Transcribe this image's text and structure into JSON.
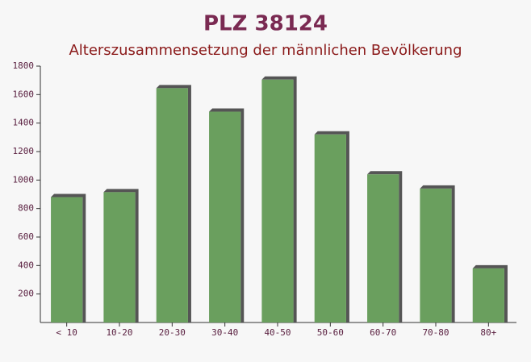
{
  "chart_data": {
    "type": "bar",
    "title": "PLZ 38124",
    "subtitle": "Alterszusammensetzung der männlichen Bevölkerung",
    "categories": [
      "< 10",
      "10-20",
      "20-30",
      "30-40",
      "40-50",
      "50-60",
      "60-70",
      "70-80",
      "80+"
    ],
    "values": [
      880,
      915,
      1645,
      1480,
      1705,
      1320,
      1040,
      940,
      380
    ],
    "color": "#6a9f5e",
    "ylim": [
      0,
      1800
    ],
    "yticks": [
      200,
      400,
      600,
      800,
      1000,
      1200,
      1400,
      1600,
      1800
    ]
  }
}
